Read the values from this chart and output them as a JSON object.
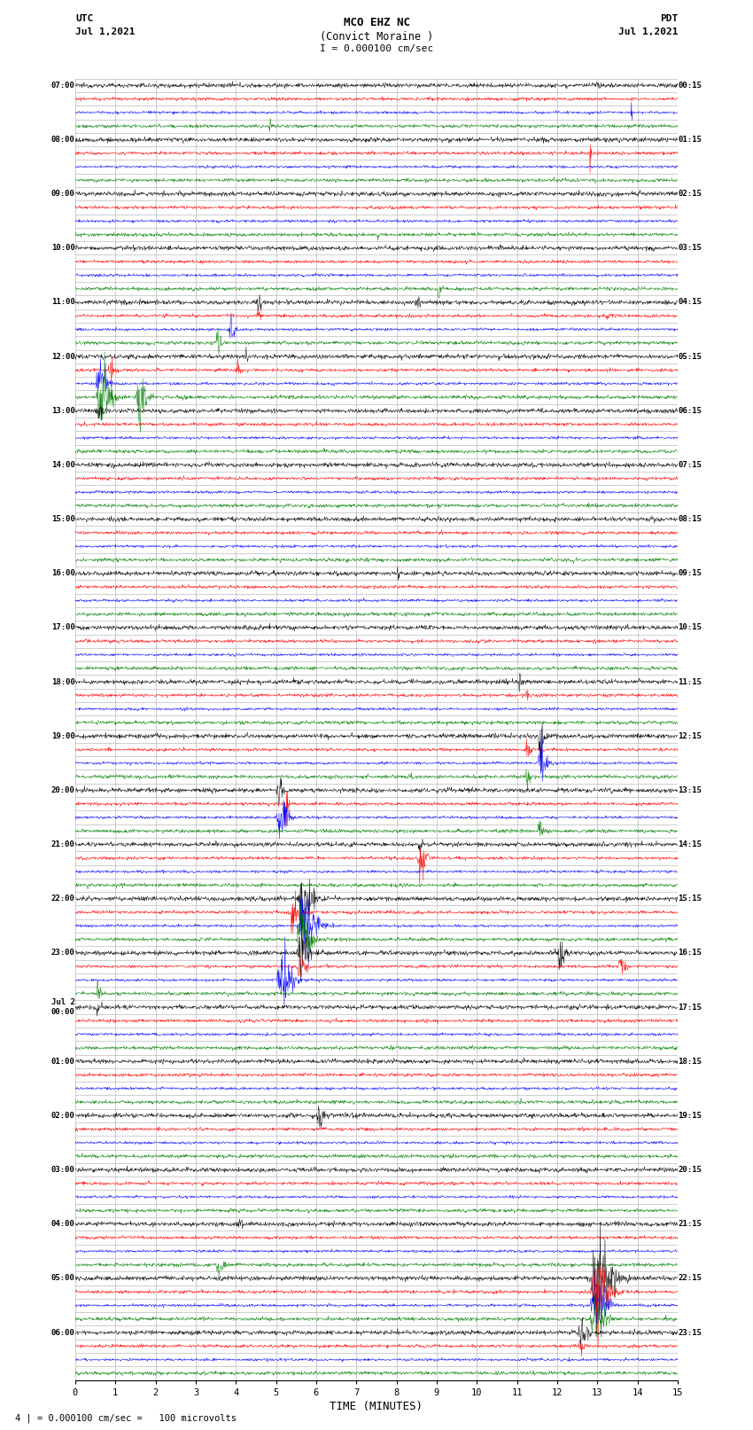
{
  "title_line1": "MCO EHZ NC",
  "title_line2": "(Convict Moraine )",
  "scale_label": "I = 0.000100 cm/sec",
  "left_header_line1": "UTC",
  "left_header_line2": "Jul 1,2021",
  "right_header_line1": "PDT",
  "right_header_line2": "Jul 1,2021",
  "footer_note": "4 | = 0.000100 cm/sec =   100 microvolts",
  "xlabel": "TIME (MINUTES)",
  "bg_color": "#ffffff",
  "trace_colors": [
    "black",
    "red",
    "blue",
    "green"
  ],
  "num_hour_groups": 24,
  "traces_per_group": 4,
  "minutes_per_row": 15,
  "samples_per_minute": 100,
  "grid_color": "#aaaaaa",
  "grid_lw": 0.4,
  "xticks": [
    0,
    1,
    2,
    3,
    4,
    5,
    6,
    7,
    8,
    9,
    10,
    11,
    12,
    13,
    14,
    15
  ],
  "figsize": [
    8.5,
    16.13
  ],
  "left_labels": [
    "07:00",
    "",
    "",
    "",
    "08:00",
    "",
    "",
    "",
    "09:00",
    "",
    "",
    "",
    "10:00",
    "",
    "",
    "",
    "11:00",
    "",
    "",
    "",
    "12:00",
    "",
    "",
    "",
    "13:00",
    "",
    "",
    "",
    "14:00",
    "",
    "",
    "",
    "15:00",
    "",
    "",
    "",
    "16:00",
    "",
    "",
    "",
    "17:00",
    "",
    "",
    "",
    "18:00",
    "",
    "",
    "",
    "19:00",
    "",
    "",
    "",
    "20:00",
    "",
    "",
    "",
    "21:00",
    "",
    "",
    "",
    "22:00",
    "",
    "",
    "",
    "23:00",
    "",
    "",
    "",
    "Jul 2\n00:00",
    "",
    "",
    "",
    "01:00",
    "",
    "",
    "",
    "02:00",
    "",
    "",
    "",
    "03:00",
    "",
    "",
    "",
    "04:00",
    "",
    "",
    "",
    "05:00",
    "",
    "",
    "",
    "06:00",
    "",
    ""
  ],
  "right_labels": [
    "00:15",
    "",
    "",
    "",
    "01:15",
    "",
    "",
    "",
    "02:15",
    "",
    "",
    "",
    "03:15",
    "",
    "",
    "",
    "04:15",
    "",
    "",
    "",
    "05:15",
    "",
    "",
    "",
    "06:15",
    "",
    "",
    "",
    "07:15",
    "",
    "",
    "",
    "08:15",
    "",
    "",
    "",
    "09:15",
    "",
    "",
    "",
    "10:15",
    "",
    "",
    "",
    "11:15",
    "",
    "",
    "",
    "12:15",
    "",
    "",
    "",
    "13:15",
    "",
    "",
    "",
    "14:15",
    "",
    "",
    "",
    "15:15",
    "",
    "",
    "",
    "16:15",
    "",
    "",
    "",
    "17:15",
    "",
    "",
    "",
    "18:15",
    "",
    "",
    "",
    "19:15",
    "",
    "",
    "",
    "20:15",
    "",
    "",
    "",
    "21:15",
    "",
    "",
    "",
    "22:15",
    "",
    "",
    "",
    "23:15",
    "",
    ""
  ]
}
